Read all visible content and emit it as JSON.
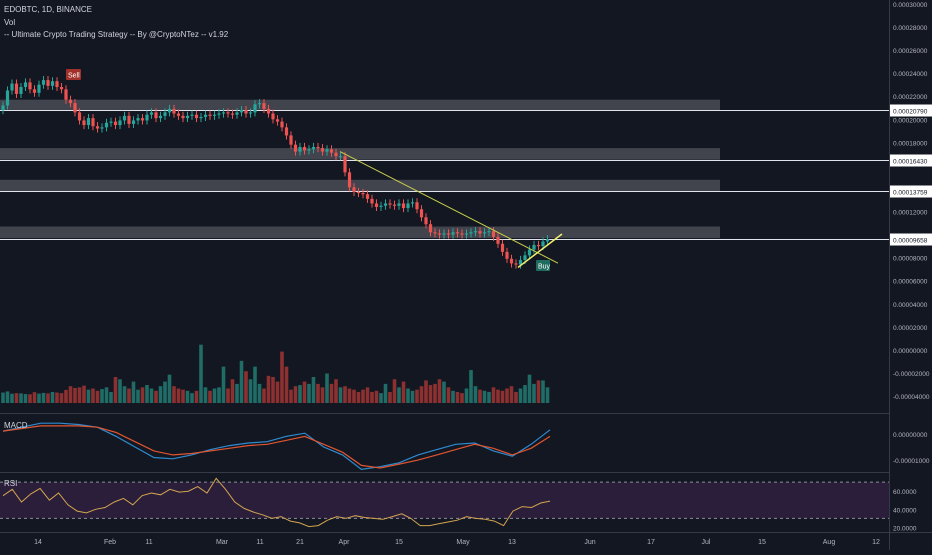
{
  "header": {
    "symbol": "EDOBTC, 1D, BINANCE",
    "volume_label": "Vol",
    "strategy_label": "-- Ultimate Crypto Trading Strategy -- By @CryptoNTez -- v1.92"
  },
  "panes": {
    "macd_label": "MACD",
    "rsi_label": "RSI"
  },
  "colors": {
    "background": "#131722",
    "bull": "#26a69a",
    "bear": "#ef5350",
    "vol_bull": "#1f6d66",
    "vol_bear": "#8c3030",
    "zone": "#4a4c55",
    "trendline": "#c7cf4a",
    "macd_line": "#2e8bd0",
    "signal_line": "#e0552f",
    "rsi_line": "#d4a54f",
    "rsi_band": "#2a1e3a"
  },
  "chart_data": [
    {
      "type": "candlestick",
      "title": "EDOBTC, 1D, BINANCE",
      "x_ticks": [
        "14",
        "Feb",
        "11",
        "Mar",
        "11",
        "21",
        "Apr",
        "15",
        "May",
        "13",
        "Jun",
        "17",
        "Jul",
        "15",
        "Aug",
        "12"
      ],
      "y_ticks": [
        "0.00030000",
        "0.00028000",
        "0.00026000",
        "0.00024000",
        "0.00022000",
        "0.00020000",
        "0.00018000",
        "0.00016000",
        "0.00014000",
        "0.00012000",
        "0.00010000",
        "0.00008000",
        "0.00006000",
        "0.00004000",
        "0.00002000",
        "0.00000000",
        "-0.00002000",
        "-0.00004000"
      ],
      "ylim": [
        -4e-05,
        0.0003
      ],
      "horizontal_levels": [
        {
          "label": "0.00020790",
          "value": 0.0002079
        },
        {
          "label": "0.00016430",
          "value": 0.0001643
        },
        {
          "label": "0.00013759",
          "value": 0.00013759
        },
        {
          "label": "0.00009658",
          "value": 9.658e-05
        }
      ],
      "zones": [
        {
          "low": 0.0002074,
          "high": 0.000217
        },
        {
          "low": 0.000165,
          "high": 0.000175
        },
        {
          "low": 0.0001375,
          "high": 0.0001475
        },
        {
          "low": 9.7e-05,
          "high": 0.000107
        }
      ],
      "signals": [
        {
          "label": "Sell",
          "type": "sell",
          "value": 0.000236
        },
        {
          "label": "Buy",
          "type": "buy",
          "value": 7.15e-05
        }
      ],
      "close": [
        0.000212,
        0.000225,
        0.000231,
        0.000222,
        0.000228,
        0.000232,
        0.000226,
        0.000223,
        0.00023,
        0.000234,
        0.000229,
        0.000233,
        0.000228,
        0.000226,
        0.000217,
        0.000214,
        0.000206,
        0.000199,
        0.000195,
        0.000201,
        0.000194,
        0.000192,
        0.000193,
        0.000197,
        0.000198,
        0.000195,
        0.000199,
        0.000203,
        0.000196,
        0.000199,
        0.000201,
        0.000199,
        0.000204,
        0.000206,
        0.000201,
        0.000203,
        0.000206,
        0.000209,
        0.000205,
        0.000203,
        0.000201,
        0.000203,
        0.000204,
        0.000201,
        0.000202,
        0.000204,
        0.000203,
        0.000204,
        0.000205,
        0.000206,
        0.000205,
        0.000204,
        0.000206,
        0.000208,
        0.000205,
        0.000206,
        0.000213,
        0.000214,
        0.000209,
        0.000205,
        0.0002,
        0.000198,
        0.000193,
        0.000186,
        0.000178,
        0.000172,
        0.000176,
        0.000173,
        0.000174,
        0.000176,
        0.000175,
        0.000172,
        0.000174,
        0.000171,
        0.000168,
        0.000168,
        0.000154,
        0.000141,
        0.000137,
        0.000136,
        0.000135,
        0.000131,
        0.000127,
        0.000124,
        0.000125,
        0.000127,
        0.000126,
        0.000125,
        0.000127,
        0.000123,
        0.000127,
        0.000128,
        0.000122,
        0.000115,
        0.000109,
        0.000102,
        0.000101,
        0.0001,
        0.000101,
        0.0001,
        0.000102,
        0.000101,
        0.0001,
        0.000101,
        0.000102,
        0.000103,
        0.000101,
        0.000102,
        0.000103,
        9.8e-05,
        9.2e-05,
        8.5e-05,
        7.9e-05,
        7.5e-05,
        7.4e-05,
        7.8e-05,
        8.2e-05,
        8.7e-05,
        9.1e-05,
        9e-05,
        9.4e-05,
        9.6e-05
      ],
      "volume": [
        2.5e-06,
        3.5e-06,
        1.5e-06,
        2e-06,
        1.8e-06,
        1.2e-06,
        1e-06,
        2.8e-06,
        1.6e-06,
        2.2e-06,
        1.8e-06,
        3e-06,
        2.5e-06,
        2e-06,
        4.8e-06,
        8e-06,
        6.5e-06,
        7e-06,
        8.5e-06,
        5e-06,
        6e-06,
        4e-06,
        5.5e-06,
        7e-06,
        3e-06,
        1.6e-05,
        1.4e-05,
        8e-06,
        6e-06,
        1.2e-05,
        5e-06,
        7e-06,
        9e-06,
        6e-06,
        4e-06,
        8e-06,
        1.2e-05,
        1.8e-05,
        8e-06,
        6e-06,
        5e-06,
        4e-06,
        2e-06,
        4e-06,
        4.4e-05,
        7e-06,
        4e-06,
        6e-06,
        7e-06,
        2.5e-05,
        6e-06,
        1.4e-05,
        1e-05,
        3e-05,
        2.1e-05,
        1.4e-05,
        2.5e-05,
        1e-05,
        6e-06,
        1.7e-05,
        1.6e-05,
        1.2e-05,
        3.8e-05,
        2.5e-05,
        5e-06,
        8e-06,
        9e-06,
        1.2e-05,
        1e-05,
        1.6e-05,
        1e-05,
        7e-06,
        1.9e-05,
        1e-05,
        1.4e-05,
        7e-06,
        8e-06,
        6e-06,
        5e-06,
        3e-06,
        5e-06,
        7e-06,
        3e-06,
        4e-06,
        2e-06,
        1e-05,
        3e-06,
        1.4e-05,
        7e-06,
        1.2e-05,
        6e-06,
        4e-06,
        5e-06,
        8e-06,
        1.3e-05,
        9e-06,
        1e-05,
        1.4e-05,
        1.2e-05,
        7e-06,
        4e-06,
        3e-06,
        2e-06,
        6e-06,
        2.2e-05,
        8e-06,
        5e-06,
        4e-06,
        3e-06,
        7e-06,
        5e-06,
        4e-06,
        6e-06,
        8e-06,
        3e-06,
        6e-06,
        9e-06,
        1.8e-05,
        1e-05,
        1.3e-05,
        1.3e-05,
        7e-06
      ]
    },
    {
      "type": "line",
      "title": "MACD",
      "y_ticks": [
        "0.00000000",
        "-0.00001000"
      ],
      "ylim": [
        -1.45e-05,
        7.5e-06
      ],
      "series": [
        {
          "name": "MACD",
          "values": [
            1e-06,
            2.5e-06,
            4e-06,
            4e-06,
            3.5e-06,
            2.5e-06,
            -1e-06,
            -5e-06,
            -9e-06,
            -9.5e-06,
            -8e-06,
            -6e-06,
            -4.5e-06,
            -3.5e-06,
            -3e-06,
            -1e-06,
            2e-07,
            -5e-06,
            -8e-06,
            -1.35e-05,
            -1.25e-05,
            -1.1e-05,
            -8e-06,
            -6e-06,
            -4e-06,
            -3.5e-06,
            -6.5e-06,
            -8.5e-06,
            -4e-06,
            1.5e-06
          ]
        },
        {
          "name": "Signal",
          "values": [
            1e-06,
            2e-06,
            3e-06,
            3e-06,
            3e-06,
            2.5e-06,
            5e-07,
            -3e-06,
            -6.5e-06,
            -8e-06,
            -7.5e-06,
            -6.5e-06,
            -5.5e-06,
            -4.5e-06,
            -4e-06,
            -2.5e-06,
            -1e-06,
            -4e-06,
            -7e-06,
            -1.2e-05,
            -1.3e-05,
            -1.15e-05,
            -1e-05,
            -8e-06,
            -6e-06,
            -4e-06,
            -5.5e-06,
            -8e-06,
            -5.5e-06,
            -1e-06
          ]
        }
      ]
    },
    {
      "type": "line",
      "title": "RSI",
      "y_ticks": [
        "60.0000",
        "40.0000",
        "20.0000"
      ],
      "ylim": [
        15,
        80
      ],
      "bands": [
        70,
        30
      ],
      "series": [
        {
          "name": "RSI",
          "values": [
            55,
            62,
            48,
            57,
            63,
            50,
            58,
            45,
            38,
            36,
            40,
            42,
            48,
            52,
            45,
            55,
            58,
            56,
            62,
            59,
            60,
            65,
            58,
            74,
            62,
            48,
            41,
            37,
            34,
            30,
            32,
            27,
            25,
            21,
            22,
            28,
            32,
            30,
            33,
            31,
            30,
            29,
            32,
            35,
            30,
            22,
            22,
            24,
            26,
            28,
            32,
            30,
            29,
            27,
            22,
            38,
            43,
            42,
            47,
            49
          ]
        }
      ]
    }
  ]
}
